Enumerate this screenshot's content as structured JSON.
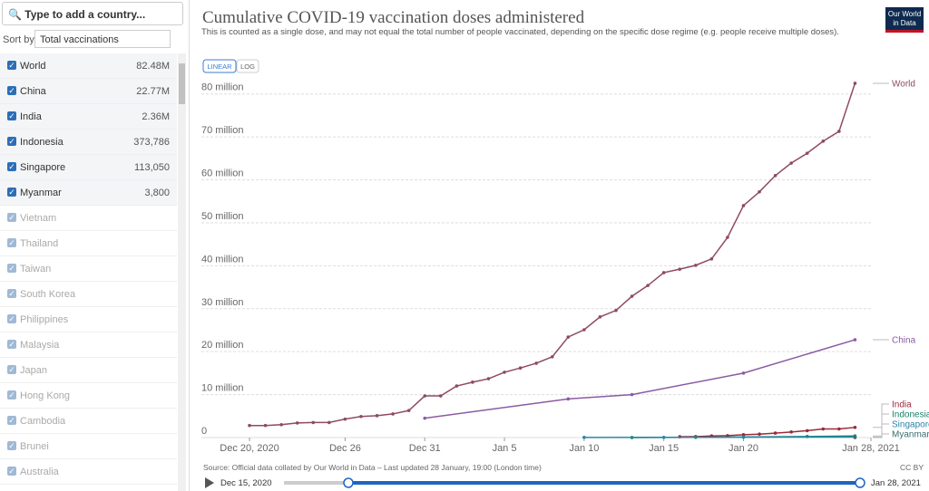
{
  "sidebar": {
    "search_placeholder": "Type to add a country...",
    "sort_label": "Sort by",
    "sort_value": "Total vaccinations",
    "rows": [
      {
        "name": "World",
        "value": "82.48M",
        "selected": true
      },
      {
        "name": "China",
        "value": "22.77M",
        "selected": true
      },
      {
        "name": "India",
        "value": "2.36M",
        "selected": true
      },
      {
        "name": "Indonesia",
        "value": "373,786",
        "selected": true
      },
      {
        "name": "Singapore",
        "value": "113,050",
        "selected": true
      },
      {
        "name": "Myanmar",
        "value": "3,800",
        "selected": true
      },
      {
        "name": "Vietnam",
        "selected": false
      },
      {
        "name": "Thailand",
        "selected": false
      },
      {
        "name": "Taiwan",
        "selected": false
      },
      {
        "name": "South Korea",
        "selected": false
      },
      {
        "name": "Philippines",
        "selected": false
      },
      {
        "name": "Malaysia",
        "selected": false
      },
      {
        "name": "Japan",
        "selected": false
      },
      {
        "name": "Hong Kong",
        "selected": false
      },
      {
        "name": "Cambodia",
        "selected": false
      },
      {
        "name": "Brunei",
        "selected": false
      },
      {
        "name": "Australia",
        "selected": false
      }
    ]
  },
  "logo": {
    "line1": "Our World",
    "line2": "in Data"
  },
  "buttons": {
    "linear": "LINEAR",
    "log": "LOG"
  },
  "chart_data": {
    "type": "line",
    "title": "Cumulative COVID-19 vaccination doses administered",
    "subtitle": "This is counted as a single dose, and may not equal the total number of people vaccinated, depending on the specific dose regime (e.g. people receive multiple doses).",
    "xlim": [
      "2020-12-20",
      "2021-01-28"
    ],
    "xticks": [
      {
        "value": "2020-12-20",
        "label": "Dec 20, 2020"
      },
      {
        "value": "2020-12-26",
        "label": "Dec 26"
      },
      {
        "value": "2020-12-31",
        "label": "Dec 31"
      },
      {
        "value": "2021-01-05",
        "label": "Jan 5"
      },
      {
        "value": "2021-01-10",
        "label": "Jan 10"
      },
      {
        "value": "2021-01-15",
        "label": "Jan 15"
      },
      {
        "value": "2021-01-20",
        "label": "Jan 20"
      },
      {
        "value": "2021-01-28",
        "label": "Jan 28, 2021"
      }
    ],
    "ylim": [
      0,
      85000000
    ],
    "yticks": [
      0,
      {
        "value": 10000000,
        "label": "10 million"
      },
      {
        "value": 20000000,
        "label": "20 million"
      },
      {
        "value": 30000000,
        "label": "30 million"
      },
      {
        "value": 40000000,
        "label": "40 million"
      },
      {
        "value": 50000000,
        "label": "50 million"
      },
      {
        "value": 60000000,
        "label": "60 million"
      },
      {
        "value": 70000000,
        "label": "70 million"
      },
      {
        "value": 80000000,
        "label": "80 million"
      }
    ],
    "grid": true,
    "series": [
      {
        "name": "World",
        "color": "#8e4a64",
        "x": [
          "2020-12-20",
          "2020-12-21",
          "2020-12-22",
          "2020-12-23",
          "2020-12-24",
          "2020-12-25",
          "2020-12-26",
          "2020-12-27",
          "2020-12-28",
          "2020-12-29",
          "2020-12-30",
          "2020-12-31",
          "2021-01-01",
          "2021-01-02",
          "2021-01-03",
          "2021-01-04",
          "2021-01-05",
          "2021-01-06",
          "2021-01-07",
          "2021-01-08",
          "2021-01-09",
          "2021-01-10",
          "2021-01-11",
          "2021-01-12",
          "2021-01-13",
          "2021-01-14",
          "2021-01-15",
          "2021-01-16",
          "2021-01-17",
          "2021-01-18",
          "2021-01-19",
          "2021-01-20",
          "2021-01-21",
          "2021-01-22",
          "2021-01-23",
          "2021-01-24",
          "2021-01-25",
          "2021-01-26",
          "2021-01-27"
        ],
        "values": [
          2800000,
          2800000,
          3000000,
          3400000,
          3500000,
          3500000,
          4300000,
          4900000,
          5100000,
          5500000,
          6300000,
          9700000,
          9700000,
          12000000,
          12900000,
          13700000,
          15200000,
          16200000,
          17300000,
          18800000,
          23400000,
          25100000,
          28100000,
          29600000,
          32900000,
          35400000,
          38400000,
          39200000,
          40100000,
          41600000,
          46600000,
          54000000,
          57200000,
          61000000,
          63900000,
          66200000,
          69000000,
          71300000,
          82480000
        ]
      },
      {
        "name": "China",
        "color": "#8a5ba4",
        "x": [
          "2020-12-31",
          "2021-01-09",
          "2021-01-13",
          "2021-01-20",
          "2021-01-27"
        ],
        "values": [
          4500000,
          9000000,
          10000000,
          15000000,
          22770000
        ]
      },
      {
        "name": "India",
        "color": "#9a2b3a",
        "x": [
          "2021-01-16",
          "2021-01-17",
          "2021-01-18",
          "2021-01-19",
          "2021-01-20",
          "2021-01-21",
          "2021-01-22",
          "2021-01-23",
          "2021-01-24",
          "2021-01-25",
          "2021-01-26",
          "2021-01-27"
        ],
        "values": [
          190000,
          220000,
          380000,
          450000,
          670000,
          800000,
          1040000,
          1300000,
          1600000,
          2000000,
          2000000,
          2360000
        ]
      },
      {
        "name": "Indonesia",
        "color": "#18836c",
        "x": [
          "2021-01-13",
          "2021-01-17",
          "2021-01-20",
          "2021-01-24",
          "2021-01-27"
        ],
        "values": [
          10000,
          50000,
          130000,
          250000,
          373786
        ]
      },
      {
        "name": "Singapore",
        "color": "#2a85a8",
        "x": [
          "2021-01-10",
          "2021-01-15",
          "2021-01-20",
          "2021-01-27"
        ],
        "values": [
          30000,
          50000,
          80000,
          113050
        ]
      },
      {
        "name": "Myanmar",
        "color": "#3c6e6e",
        "x": [
          "2021-01-27"
        ],
        "values": [
          3800
        ]
      }
    ]
  },
  "footer": {
    "source": "Source: Official data collated by Our World in Data – Last updated 28 January, 19:00 (London time)",
    "license": "CC BY",
    "timeline_start": "Dec 15, 2020",
    "timeline_end": "Jan 28, 2021"
  }
}
